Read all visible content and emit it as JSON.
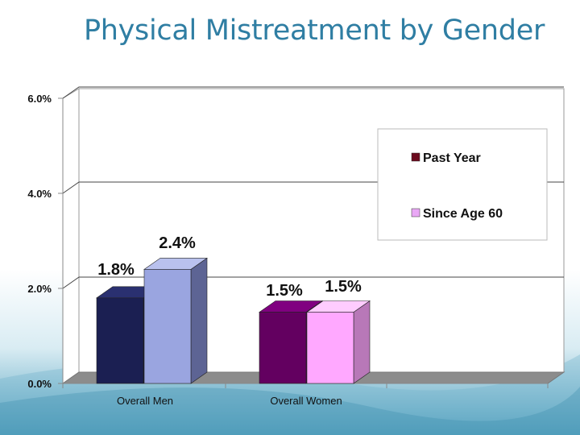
{
  "slide": {
    "title": "Physical Mistreatment by Gender"
  },
  "colors": {
    "series_front": [
      "#1b1f52",
      "#9aa5e0",
      "#630060",
      "#ffa8ff"
    ],
    "series_side": [
      "#0f1236",
      "#5d6494",
      "#3e003c",
      "#b878b8"
    ],
    "series_top": [
      "#2a3070",
      "#b9c1ee",
      "#800080",
      "#ffccff"
    ],
    "legend_swatches": [
      "#6b0a1e",
      "#e9a8f5"
    ]
  },
  "chart_data": {
    "type": "bar",
    "title": "Physical Mistreatment by Gender",
    "categories": [
      "Overall Men",
      "Overall Women"
    ],
    "series": [
      {
        "name": "Past Year",
        "values": [
          1.8,
          1.5
        ]
      },
      {
        "name": "Since Age 60",
        "values": [
          2.4,
          1.5
        ]
      }
    ],
    "data_labels": [
      [
        "1.8%",
        "1.5%"
      ],
      [
        "2.4%",
        "1.5%"
      ]
    ],
    "ylim": [
      0,
      6
    ],
    "yticks": [
      0,
      2,
      4,
      6
    ],
    "ytick_labels": [
      "0.0%",
      "2.0%",
      "4.0%",
      "6.0%"
    ],
    "xlabel": "",
    "ylabel": "",
    "grid": true,
    "legend_position": "right",
    "legend": [
      "Past Year",
      "Since Age 60"
    ]
  }
}
